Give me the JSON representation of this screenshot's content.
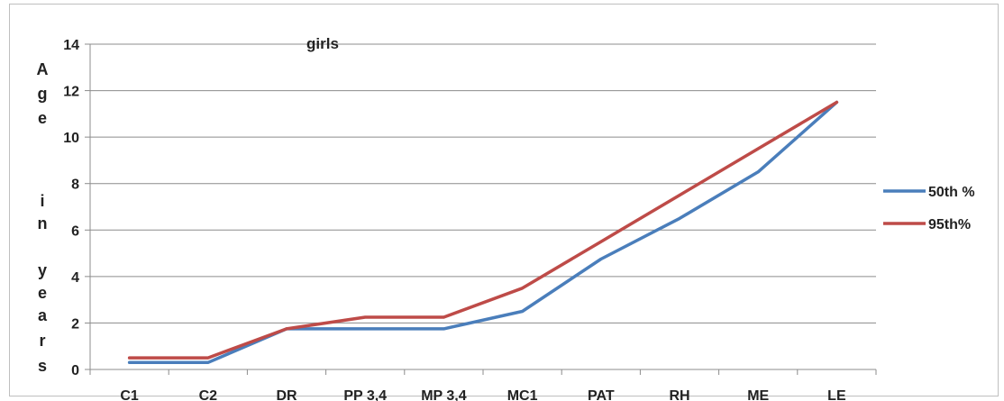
{
  "chart_data": {
    "type": "line",
    "title": "girls",
    "ylabel": "Age in years",
    "xlabel": "",
    "categories": [
      "C1",
      "C2",
      "DR",
      "PP 3,4",
      "MP 3,4",
      "MC1",
      "PAT",
      "RH",
      "ME",
      "LE"
    ],
    "ylim": [
      0,
      14
    ],
    "yticks": [
      0,
      2,
      4,
      6,
      8,
      10,
      12,
      14
    ],
    "grid": true,
    "legend_position": "right",
    "series": [
      {
        "name": "50th %",
        "color": "#4a7ebb",
        "values": [
          0.3,
          0.3,
          1.75,
          1.75,
          1.75,
          2.5,
          4.75,
          6.5,
          8.5,
          11.5
        ]
      },
      {
        "name": "95th%",
        "color": "#be4b48",
        "values": [
          0.5,
          0.5,
          1.75,
          2.25,
          2.25,
          3.5,
          5.5,
          7.5,
          9.5,
          11.5
        ]
      }
    ]
  }
}
